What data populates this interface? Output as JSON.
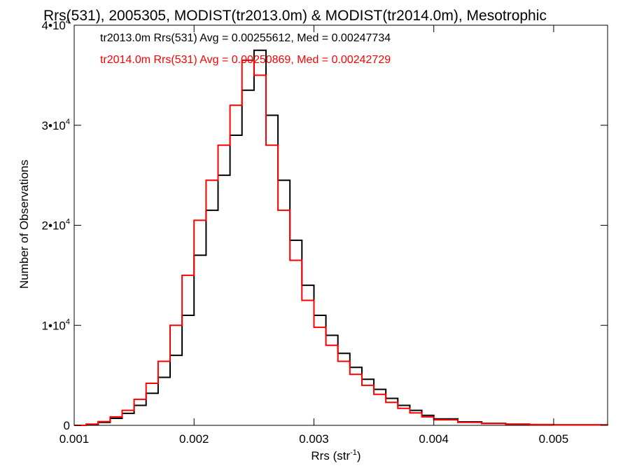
{
  "chart_data": {
    "type": "line",
    "title": "Rrs(531), 2005305, MODIST(tr2013.0m) & MODIST(tr2014.0m), Mesotrophic",
    "xlabel": "Rrs (str",
    "xlabel_sup": "-1",
    "xlabel_end": ")",
    "ylabel": "Number of Observations",
    "xlim": [
      0.001,
      0.00545
    ],
    "ylim": [
      0,
      40000
    ],
    "x_ticks": [
      {
        "value": 0.001,
        "label": "0.001"
      },
      {
        "value": 0.002,
        "label": "0.002"
      },
      {
        "value": 0.003,
        "label": "0.003"
      },
      {
        "value": 0.004,
        "label": "0.004"
      },
      {
        "value": 0.005,
        "label": "0.005"
      }
    ],
    "y_ticks": [
      {
        "value": 0,
        "mantissa": "0",
        "exp": ""
      },
      {
        "value": 10000,
        "mantissa": "1•10",
        "exp": "4"
      },
      {
        "value": 20000,
        "mantissa": "2•10",
        "exp": "4"
      },
      {
        "value": 30000,
        "mantissa": "3•10",
        "exp": "4"
      },
      {
        "value": 40000,
        "mantissa": "4•10",
        "exp": "4"
      }
    ],
    "grid": false,
    "legend_position": "top-left",
    "series": [
      {
        "name": "tr2013.0m Rrs(531) Avg = 0.00255612, Med = 0.00247734",
        "color": "#000000",
        "x": [
          0.001,
          0.0011,
          0.0012,
          0.0013,
          0.0014,
          0.0015,
          0.0016,
          0.0017,
          0.0018,
          0.0019,
          0.002,
          0.0021,
          0.0022,
          0.0023,
          0.0024,
          0.0025,
          0.0026,
          0.0027,
          0.0028,
          0.0029,
          0.003,
          0.0031,
          0.0032,
          0.0033,
          0.0034,
          0.0035,
          0.0036,
          0.0037,
          0.0038,
          0.0039,
          0.004,
          0.0042,
          0.0044,
          0.0046,
          0.0048,
          0.005,
          0.00545
        ],
        "y": [
          0,
          100,
          300,
          700,
          1200,
          2000,
          3200,
          4800,
          7000,
          11000,
          17000,
          21500,
          25000,
          29000,
          33500,
          37500,
          31000,
          24500,
          18500,
          14000,
          11000,
          9000,
          7200,
          5800,
          4600,
          3600,
          2700,
          2000,
          1500,
          1000,
          650,
          350,
          200,
          120,
          80,
          50,
          0
        ]
      },
      {
        "name": "tr2014.0m Rrs(531) Avg = 0.00250869, Med = 0.00242729",
        "color": "#ff0000",
        "x": [
          0.001,
          0.0011,
          0.0012,
          0.0013,
          0.0014,
          0.0015,
          0.0016,
          0.0017,
          0.0018,
          0.0019,
          0.002,
          0.0021,
          0.0022,
          0.0023,
          0.0024,
          0.0025,
          0.0026,
          0.0027,
          0.0028,
          0.0029,
          0.003,
          0.0031,
          0.0032,
          0.0033,
          0.0034,
          0.0035,
          0.0036,
          0.0037,
          0.0038,
          0.0039,
          0.004,
          0.0042,
          0.0044,
          0.0046,
          0.0048,
          0.005,
          0.00545
        ],
        "y": [
          0,
          120,
          380,
          850,
          1500,
          2600,
          4200,
          6400,
          10000,
          15000,
          20500,
          24500,
          28000,
          32000,
          36500,
          35000,
          28000,
          21500,
          16500,
          12500,
          9800,
          8000,
          6400,
          5100,
          4000,
          3100,
          2300,
          1700,
          1250,
          850,
          550,
          300,
          180,
          110,
          70,
          40,
          0
        ]
      }
    ]
  }
}
